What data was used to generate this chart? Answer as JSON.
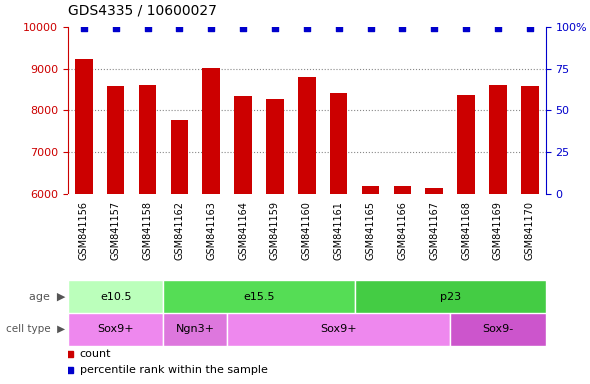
{
  "title": "GDS4335 / 10600027",
  "samples": [
    "GSM841156",
    "GSM841157",
    "GSM841158",
    "GSM841162",
    "GSM841163",
    "GSM841164",
    "GSM841159",
    "GSM841160",
    "GSM841161",
    "GSM841165",
    "GSM841166",
    "GSM841167",
    "GSM841168",
    "GSM841169",
    "GSM841170"
  ],
  "counts": [
    9230,
    8580,
    8600,
    7780,
    9020,
    8350,
    8270,
    8790,
    8410,
    6190,
    6180,
    6130,
    8380,
    8610,
    8590
  ],
  "bar_color": "#cc0000",
  "dot_color": "#0000cc",
  "ylim_left": [
    6000,
    10000
  ],
  "ylim_right": [
    0,
    100
  ],
  "yticks_left": [
    6000,
    7000,
    8000,
    9000,
    10000
  ],
  "yticks_right": [
    0,
    25,
    50,
    75,
    100
  ],
  "age_groups": [
    {
      "label": "e10.5",
      "start": 0,
      "end": 3,
      "color": "#bbffbb"
    },
    {
      "label": "e15.5",
      "start": 3,
      "end": 9,
      "color": "#55dd55"
    },
    {
      "label": "p23",
      "start": 9,
      "end": 15,
      "color": "#44cc44"
    }
  ],
  "cell_type_groups": [
    {
      "label": "Sox9+",
      "start": 0,
      "end": 3,
      "color": "#ee88ee"
    },
    {
      "label": "Ngn3+",
      "start": 3,
      "end": 5,
      "color": "#dd77dd"
    },
    {
      "label": "Sox9+",
      "start": 5,
      "end": 12,
      "color": "#ee88ee"
    },
    {
      "label": "Sox9-",
      "start": 12,
      "end": 15,
      "color": "#cc55cc"
    }
  ],
  "legend_count_color": "#cc0000",
  "legend_dot_color": "#0000cc",
  "xlabel_bg": "#c8c8c8"
}
